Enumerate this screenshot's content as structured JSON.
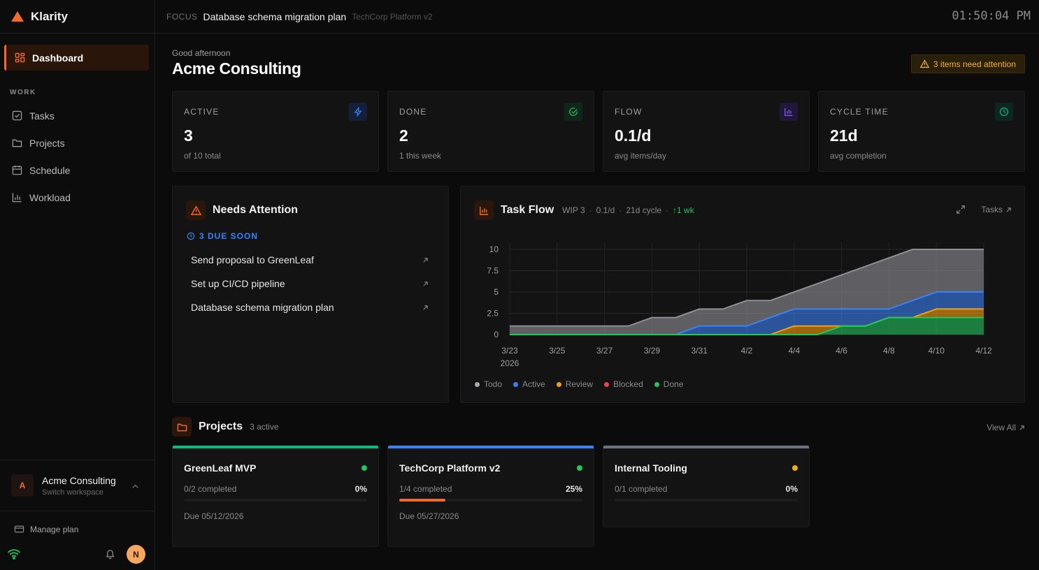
{
  "brand": {
    "name": "Klarity"
  },
  "nav": {
    "dashboard": "Dashboard",
    "section": "WORK",
    "items": [
      "Tasks",
      "Projects",
      "Schedule",
      "Workload"
    ]
  },
  "workspace": {
    "initial": "A",
    "name": "Acme Consulting",
    "sub": "Switch workspace"
  },
  "manage_plan": "Manage plan",
  "user": {
    "initial": "N"
  },
  "topbar": {
    "focus_label": "FOCUS",
    "focus_title": "Database schema migration plan",
    "focus_project": "TechCorp Platform v2",
    "clock": "01:50:04 PM"
  },
  "header": {
    "greeting": "Good afternoon",
    "org": "Acme Consulting",
    "alert": "3 items need attention"
  },
  "stats": [
    {
      "label": "ACTIVE",
      "value": "3",
      "sub": "of 10 total",
      "color": "#3b82f6",
      "bg": "#142039"
    },
    {
      "label": "DONE",
      "value": "2",
      "sub": "1 this week",
      "color": "#22c55e",
      "bg": "#10261a"
    },
    {
      "label": "FLOW",
      "value": "0.1/d",
      "sub": "avg items/day",
      "color": "#8b5cf6",
      "bg": "#21173a"
    },
    {
      "label": "CYCLE TIME",
      "value": "21d",
      "sub": "avg completion",
      "color": "#10b981",
      "bg": "#0e2620"
    }
  ],
  "attention": {
    "title": "Needs Attention",
    "due_label": "3 DUE SOON",
    "items": [
      "Send proposal to GreenLeaf",
      "Set up CI/CD pipeline",
      "Database schema migration plan"
    ]
  },
  "flow": {
    "title": "Task Flow",
    "wip": "WIP 3",
    "rate": "0.1/d",
    "cycle": "21d cycle",
    "trend": "↑1 wk",
    "tasks_link": "Tasks"
  },
  "chart_data": {
    "type": "area",
    "x": [
      "3/23",
      "3/24",
      "3/25",
      "3/26",
      "3/27",
      "3/28",
      "3/29",
      "3/30",
      "3/31",
      "4/1",
      "4/2",
      "4/3",
      "4/4",
      "4/5",
      "4/6",
      "4/7",
      "4/8",
      "4/9",
      "4/10",
      "4/11",
      "4/12"
    ],
    "x_tick_labels": [
      "3/23",
      "3/25",
      "3/27",
      "3/29",
      "3/31",
      "4/2",
      "4/4",
      "4/6",
      "4/8",
      "4/10",
      "4/12"
    ],
    "x_year_label": "2026",
    "y_ticks": [
      "10",
      "7.5",
      "5",
      "2.5",
      "0"
    ],
    "ylim": [
      0,
      10
    ],
    "stacked": true,
    "series": [
      {
        "name": "Done",
        "color": "#22c55e",
        "values": [
          0,
          0,
          0,
          0,
          0,
          0,
          0,
          0,
          0,
          0,
          0,
          0,
          0,
          0,
          1,
          1,
          2,
          2,
          2,
          2,
          2
        ]
      },
      {
        "name": "Blocked",
        "color": "#ef4444",
        "values": [
          0,
          0,
          0,
          0,
          0,
          0,
          0,
          0,
          0,
          0,
          0,
          0,
          0,
          0,
          0,
          0,
          0,
          0,
          0,
          0,
          0
        ]
      },
      {
        "name": "Review",
        "color": "#f59e0b",
        "values": [
          0,
          0,
          0,
          0,
          0,
          0,
          0,
          0,
          0,
          0,
          0,
          0,
          1,
          1,
          0,
          0,
          0,
          0,
          1,
          1,
          1
        ]
      },
      {
        "name": "Active",
        "color": "#3b82f6",
        "values": [
          0,
          0,
          0,
          0,
          0,
          0,
          0,
          0,
          1,
          1,
          1,
          2,
          2,
          2,
          2,
          2,
          1,
          2,
          2,
          2,
          2
        ]
      },
      {
        "name": "Todo",
        "color": "#8e8e95",
        "values": [
          1,
          1,
          1,
          1,
          1,
          1,
          2,
          2,
          2,
          2,
          3,
          2,
          2,
          3,
          4,
          5,
          6,
          6,
          5,
          5,
          5
        ]
      }
    ],
    "legend_order": [
      "Todo",
      "Active",
      "Review",
      "Blocked",
      "Done"
    ],
    "legend_position": "bottom-left",
    "grid": true
  },
  "projects": {
    "title": "Projects",
    "count": "3 active",
    "view_all": "View All",
    "items": [
      {
        "name": "GreenLeaf MVP",
        "accent": "#10b981",
        "status": "#22c55e",
        "completed": "0/2 completed",
        "pct": "0%",
        "progress": 0,
        "due": "Due 05/12/2026"
      },
      {
        "name": "TechCorp Platform v2",
        "accent": "#3b82f6",
        "status": "#22c55e",
        "completed": "1/4 completed",
        "pct": "25%",
        "progress": 25,
        "due": "Due 05/27/2026"
      },
      {
        "name": "Internal Tooling",
        "accent": "#6b7280",
        "status": "#eab308",
        "completed": "0/1 completed",
        "pct": "0%",
        "progress": 0,
        "due": ""
      }
    ]
  }
}
